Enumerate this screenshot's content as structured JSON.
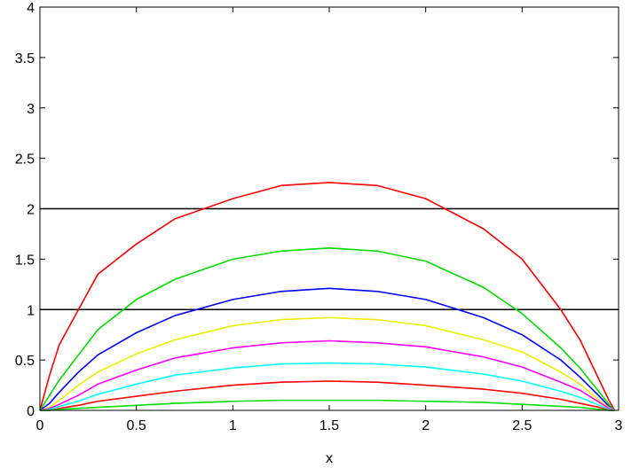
{
  "chart_data": {
    "type": "line",
    "title": "",
    "xlabel": "x",
    "ylabel": "",
    "xlim": [
      0,
      3
    ],
    "ylim": [
      0,
      4
    ],
    "grid": false,
    "x_ticks": [
      "0",
      "0.5",
      "1",
      "1.5",
      "2",
      "2.5",
      "3"
    ],
    "y_ticks": [
      "0",
      "0.5",
      "1",
      "1.5",
      "2",
      "2.5",
      "3",
      "3.5",
      "4"
    ],
    "x": [
      0.0,
      0.05,
      0.1,
      0.2,
      0.3,
      0.5,
      0.7,
      1.0,
      1.25,
      1.5,
      1.75,
      2.0,
      2.3,
      2.5,
      2.7,
      2.8,
      2.9,
      2.95,
      2.98
    ],
    "series": [
      {
        "color": "#ff0000",
        "values": [
          0.0,
          0.35,
          0.65,
          1.0,
          1.35,
          1.65,
          1.9,
          2.1,
          2.23,
          2.26,
          2.23,
          2.1,
          1.8,
          1.5,
          1.0,
          0.7,
          0.3,
          0.1,
          0.0
        ]
      },
      {
        "color": "#00dd00",
        "values": [
          0.0,
          0.15,
          0.3,
          0.55,
          0.8,
          1.1,
          1.3,
          1.5,
          1.58,
          1.61,
          1.58,
          1.48,
          1.22,
          0.96,
          0.62,
          0.42,
          0.18,
          0.06,
          0.0
        ]
      },
      {
        "color": "#0000ff",
        "values": [
          0.0,
          0.07,
          0.18,
          0.38,
          0.55,
          0.77,
          0.94,
          1.1,
          1.18,
          1.21,
          1.18,
          1.1,
          0.92,
          0.75,
          0.5,
          0.33,
          0.14,
          0.04,
          0.0
        ]
      },
      {
        "color": "#eeee00",
        "values": [
          0.0,
          0.03,
          0.1,
          0.25,
          0.38,
          0.56,
          0.7,
          0.84,
          0.9,
          0.92,
          0.9,
          0.84,
          0.7,
          0.58,
          0.38,
          0.26,
          0.1,
          0.03,
          0.0
        ]
      },
      {
        "color": "#ff00ff",
        "values": [
          0.0,
          0.02,
          0.06,
          0.15,
          0.26,
          0.4,
          0.52,
          0.62,
          0.67,
          0.69,
          0.67,
          0.63,
          0.53,
          0.43,
          0.28,
          0.2,
          0.08,
          0.02,
          0.0
        ]
      },
      {
        "color": "#00ffff",
        "values": [
          0.0,
          0.01,
          0.04,
          0.09,
          0.16,
          0.26,
          0.35,
          0.42,
          0.46,
          0.47,
          0.46,
          0.43,
          0.36,
          0.29,
          0.19,
          0.13,
          0.05,
          0.01,
          0.0
        ]
      },
      {
        "color": "#ff0000",
        "values": [
          0.0,
          0.0,
          0.02,
          0.05,
          0.09,
          0.14,
          0.19,
          0.25,
          0.28,
          0.29,
          0.28,
          0.25,
          0.21,
          0.17,
          0.11,
          0.07,
          0.03,
          0.0,
          0.0
        ]
      },
      {
        "color": "#00dd00",
        "values": [
          0.0,
          0.0,
          0.01,
          0.02,
          0.03,
          0.05,
          0.07,
          0.09,
          0.1,
          0.1,
          0.1,
          0.09,
          0.08,
          0.06,
          0.04,
          0.03,
          0.01,
          0.0,
          0.0
        ]
      }
    ],
    "reference_lines": [
      {
        "axis": "y",
        "value": 2,
        "color": "#000000"
      },
      {
        "axis": "y",
        "value": 1,
        "color": "#000000"
      }
    ]
  }
}
